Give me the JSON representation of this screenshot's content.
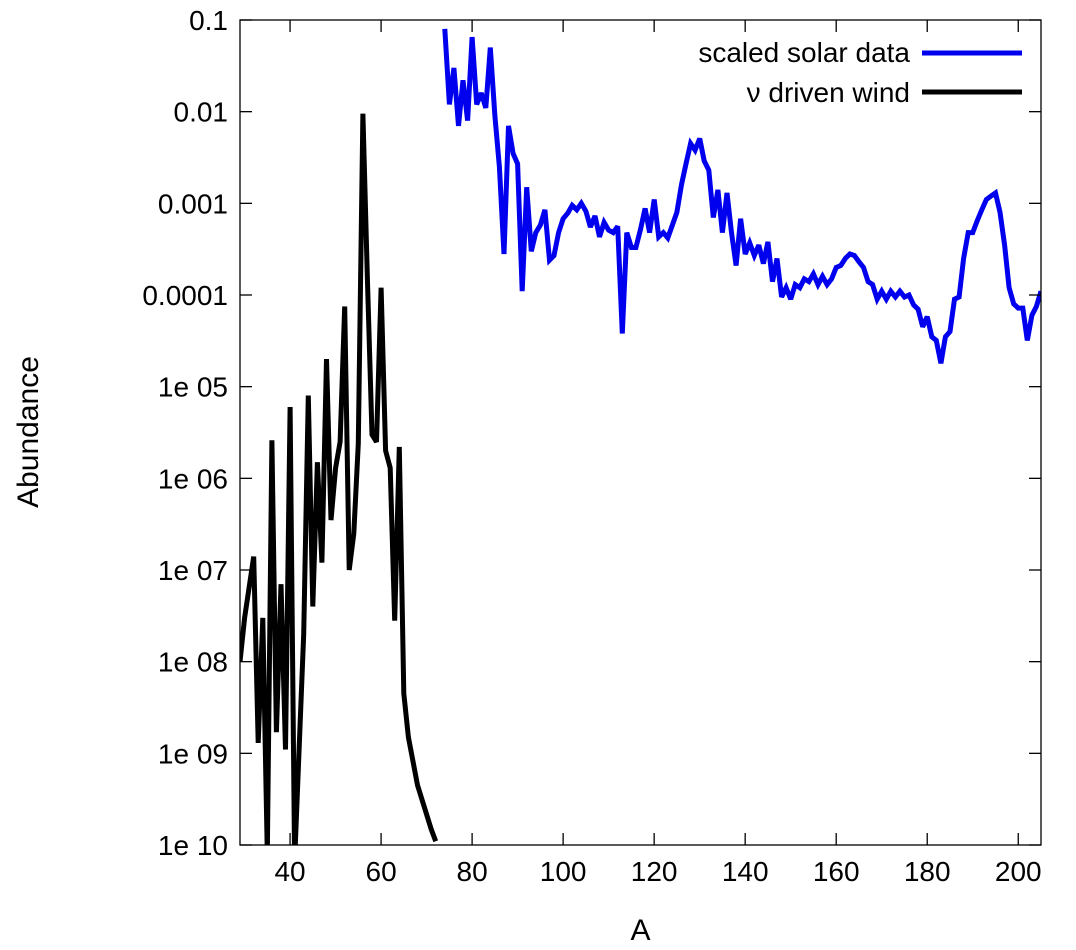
{
  "chart_data": {
    "type": "line",
    "title": "",
    "xlabel": "A",
    "ylabel": "Abundance",
    "x_scale": "linear",
    "y_scale": "log",
    "xlim": [
      29,
      205
    ],
    "ylim": [
      1e-10,
      0.1
    ],
    "x_ticks": [
      40,
      60,
      80,
      100,
      120,
      140,
      160,
      180,
      200
    ],
    "x_tick_labels": [
      "40",
      "60",
      "80",
      "100",
      "120",
      "140",
      "160",
      "180",
      "200"
    ],
    "y_ticks": [
      1e-10,
      1e-09,
      1e-08,
      1e-07,
      1e-06,
      1e-05,
      0.0001,
      0.001,
      0.01,
      0.1
    ],
    "y_tick_labels": [
      "1e 10",
      "1e 09",
      "1e 08",
      "1e 07",
      "1e 06",
      "1e 05",
      "0.0001",
      "0.001",
      "0.01",
      "0.1"
    ],
    "grid": false,
    "legend_position": "top-right",
    "series": [
      {
        "name": "scaled solar data",
        "color": "#0000ee",
        "points": [
          [
            74,
            0.08
          ],
          [
            75,
            0.012
          ],
          [
            76,
            0.03
          ],
          [
            77,
            0.007
          ],
          [
            78,
            0.022
          ],
          [
            79,
            0.008
          ],
          [
            80,
            0.065
          ],
          [
            81,
            0.012
          ],
          [
            82,
            0.016
          ],
          [
            83,
            0.011
          ],
          [
            84,
            0.05
          ],
          [
            85,
            0.009
          ],
          [
            86,
            0.0025
          ],
          [
            87,
            0.00028
          ],
          [
            88,
            0.007
          ],
          [
            89,
            0.0035
          ],
          [
            90,
            0.0027
          ],
          [
            91,
            0.00011
          ],
          [
            92,
            0.0015
          ],
          [
            93,
            0.0003
          ],
          [
            94,
            0.00048
          ],
          [
            95,
            0.00058
          ],
          [
            96,
            0.00085
          ],
          [
            97,
            0.00024
          ],
          [
            98,
            0.00027
          ],
          [
            99,
            0.00048
          ],
          [
            100,
            0.00068
          ],
          [
            101,
            0.00078
          ],
          [
            102,
            0.00095
          ],
          [
            103,
            0.00085
          ],
          [
            104,
            0.001
          ],
          [
            105,
            0.00082
          ],
          [
            106,
            0.00055
          ],
          [
            107,
            0.00073
          ],
          [
            108,
            0.00043
          ],
          [
            109,
            0.00062
          ],
          [
            110,
            0.00051
          ],
          [
            111,
            0.00048
          ],
          [
            112,
            0.00056
          ],
          [
            113,
            3.8e-05
          ],
          [
            114,
            0.00048
          ],
          [
            115,
            0.00033
          ],
          [
            116,
            0.00033
          ],
          [
            117,
            0.00052
          ],
          [
            118,
            0.00088
          ],
          [
            119,
            0.00048
          ],
          [
            120,
            0.0011
          ],
          [
            121,
            0.00043
          ],
          [
            122,
            0.00048
          ],
          [
            123,
            0.00042
          ],
          [
            124,
            0.00058
          ],
          [
            125,
            0.0008
          ],
          [
            126,
            0.0016
          ],
          [
            127,
            0.0027
          ],
          [
            128,
            0.0045
          ],
          [
            129,
            0.0038
          ],
          [
            130,
            0.0051
          ],
          [
            131,
            0.0029
          ],
          [
            132,
            0.0023
          ],
          [
            133,
            0.0007
          ],
          [
            134,
            0.0014
          ],
          [
            135,
            0.00048
          ],
          [
            136,
            0.0013
          ],
          [
            137,
            0.00048
          ],
          [
            138,
            0.00021
          ],
          [
            139,
            0.00068
          ],
          [
            140,
            0.00028
          ],
          [
            141,
            0.00037
          ],
          [
            142,
            0.00027
          ],
          [
            143,
            0.00035
          ],
          [
            144,
            0.00022
          ],
          [
            145,
            0.00038
          ],
          [
            146,
            0.00014
          ],
          [
            147,
            0.00025
          ],
          [
            148,
            9.5e-05
          ],
          [
            149,
            0.00012
          ],
          [
            150,
            9e-05
          ],
          [
            151,
            0.00013
          ],
          [
            152,
            0.00012
          ],
          [
            153,
            0.00015
          ],
          [
            154,
            0.00014
          ],
          [
            155,
            0.00017
          ],
          [
            156,
            0.00013
          ],
          [
            157,
            0.00016
          ],
          [
            158,
            0.00013
          ],
          [
            159,
            0.00015
          ],
          [
            160,
            0.0002
          ],
          [
            161,
            0.00021
          ],
          [
            162,
            0.00025
          ],
          [
            163,
            0.00028
          ],
          [
            164,
            0.00027
          ],
          [
            165,
            0.00023
          ],
          [
            166,
            0.0002
          ],
          [
            167,
            0.00014
          ],
          [
            168,
            0.00013
          ],
          [
            169,
            9e-05
          ],
          [
            170,
            0.00011
          ],
          [
            171,
            9e-05
          ],
          [
            172,
            0.00011
          ],
          [
            173,
            9.5e-05
          ],
          [
            174,
            0.00011
          ],
          [
            175,
            9.5e-05
          ],
          [
            176,
            0.0001
          ],
          [
            177,
            7.8e-05
          ],
          [
            178,
            7e-05
          ],
          [
            179,
            4.5e-05
          ],
          [
            180,
            5.8e-05
          ],
          [
            181,
            3.5e-05
          ],
          [
            182,
            3.2e-05
          ],
          [
            183,
            1.8e-05
          ],
          [
            184,
            3.5e-05
          ],
          [
            185,
            4e-05
          ],
          [
            186,
            9e-05
          ],
          [
            187,
            9.5e-05
          ],
          [
            188,
            0.00025
          ],
          [
            189,
            0.00048
          ],
          [
            190,
            0.00048
          ],
          [
            191,
            0.00065
          ],
          [
            192,
            0.00085
          ],
          [
            193,
            0.0011
          ],
          [
            194,
            0.0012
          ],
          [
            195,
            0.0013
          ],
          [
            196,
            0.0008
          ],
          [
            197,
            0.00035
          ],
          [
            198,
            0.00012
          ],
          [
            199,
            8e-05
          ],
          [
            200,
            7.2e-05
          ],
          [
            201,
            7.2e-05
          ],
          [
            202,
            3.2e-05
          ],
          [
            203,
            6e-05
          ],
          [
            204,
            7.5e-05
          ],
          [
            205,
            0.00011
          ]
        ]
      },
      {
        "name": "ν driven wind",
        "color": "#000000",
        "points": [
          [
            29,
            1e-08
          ],
          [
            30,
            3e-08
          ],
          [
            32,
            1.4e-07
          ],
          [
            33,
            1.3e-09
          ],
          [
            34,
            3e-08
          ],
          [
            35,
            8e-11
          ],
          [
            36,
            2.6e-06
          ],
          [
            37,
            1.7e-09
          ],
          [
            38,
            7e-08
          ],
          [
            39,
            1.1e-09
          ],
          [
            40,
            6e-06
          ],
          [
            41,
            6.5e-11
          ],
          [
            43,
            2e-08
          ],
          [
            44,
            8e-06
          ],
          [
            45,
            4e-08
          ],
          [
            46,
            1.5e-06
          ],
          [
            47,
            1.2e-07
          ],
          [
            48,
            2e-05
          ],
          [
            49,
            3.5e-07
          ],
          [
            50,
            1.3e-06
          ],
          [
            51,
            2.5e-06
          ],
          [
            52,
            7.5e-05
          ],
          [
            53,
            1e-07
          ],
          [
            54,
            2.5e-07
          ],
          [
            55,
            2.4e-06
          ],
          [
            56,
            0.0095
          ],
          [
            57,
            0.00015
          ],
          [
            58,
            3e-06
          ],
          [
            59,
            2.5e-06
          ],
          [
            60,
            0.00012
          ],
          [
            61,
            2e-06
          ],
          [
            62,
            1.3e-06
          ],
          [
            63,
            2.8e-08
          ],
          [
            64,
            2.2e-06
          ],
          [
            65,
            4.5e-09
          ],
          [
            66,
            1.5e-09
          ],
          [
            68,
            4.5e-10
          ],
          [
            71,
            1.5e-10
          ],
          [
            72,
            1.1e-10
          ]
        ]
      }
    ]
  }
}
